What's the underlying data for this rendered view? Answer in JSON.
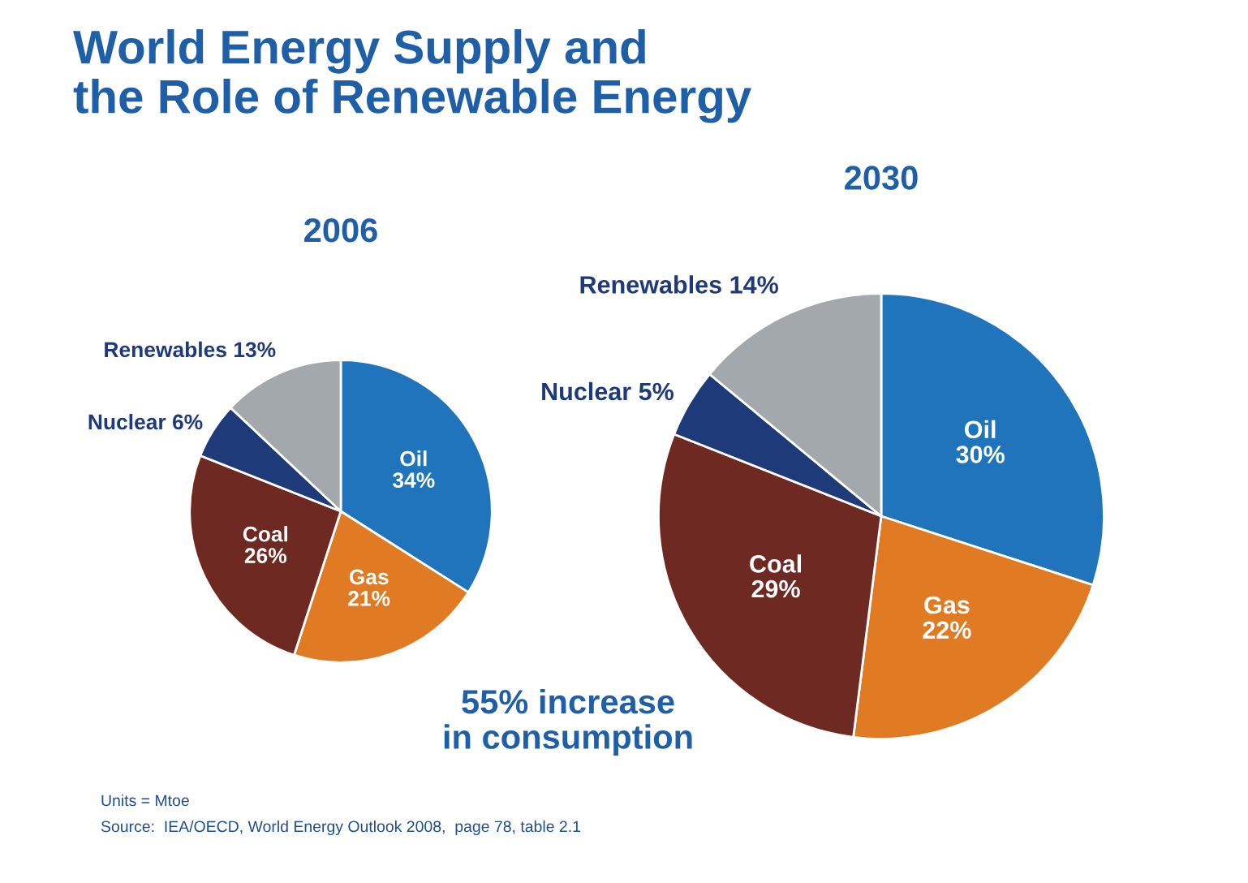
{
  "chart_data": [
    {
      "type": "pie",
      "title": "2006",
      "categories": [
        "Oil",
        "Gas",
        "Coal",
        "Nuclear",
        "Renewables"
      ],
      "values": [
        34,
        21,
        26,
        6,
        13
      ],
      "value_labels": [
        "34%",
        "21%",
        "26%",
        "6%",
        "13%"
      ],
      "colors": [
        "#1f74bb",
        "#e07b24",
        "#6e2a22",
        "#1f3a78",
        "#a3a8ad"
      ],
      "annotations": [
        "World Energy Supply and\nthe Role of Renewable Energy"
      ]
    },
    {
      "type": "pie",
      "title": "2030",
      "categories": [
        "Oil",
        "Gas",
        "Coal",
        "Nuclear",
        "Renewables"
      ],
      "values": [
        30,
        22,
        29,
        5,
        14
      ],
      "value_labels": [
        "30%",
        "22%",
        "29%",
        "5%",
        "14%"
      ],
      "colors": [
        "#1f74bb",
        "#e07b24",
        "#6e2a22",
        "#1f3a78",
        "#a3a8ad"
      ],
      "annotations": [
        "55% increase\nin consumption",
        "Units = Mtoe",
        "Source:  IEA/OECD, World Energy Outlook 2008,  page 78, table 2.1"
      ]
    }
  ]
}
